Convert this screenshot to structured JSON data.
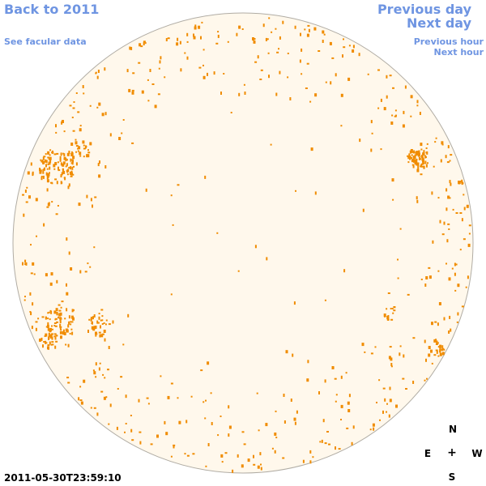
{
  "navigation": {
    "back_label": "Back to 2011",
    "facular_label": "See facular data",
    "previous_day_label": "Previous day",
    "next_day_label": "Next day",
    "previous_hour_label": "Previous hour",
    "next_hour_label": "Next hour"
  },
  "timestamp": "2011-05-30T23:59:10",
  "compass": {
    "north": "N",
    "south": "S",
    "east": "E",
    "west": "W",
    "center": "+"
  },
  "colors": {
    "link": "#6f95e2",
    "disk_fill": "#fff8ec",
    "disk_stroke": "#b0aca4",
    "facula": "#f08c00"
  }
}
